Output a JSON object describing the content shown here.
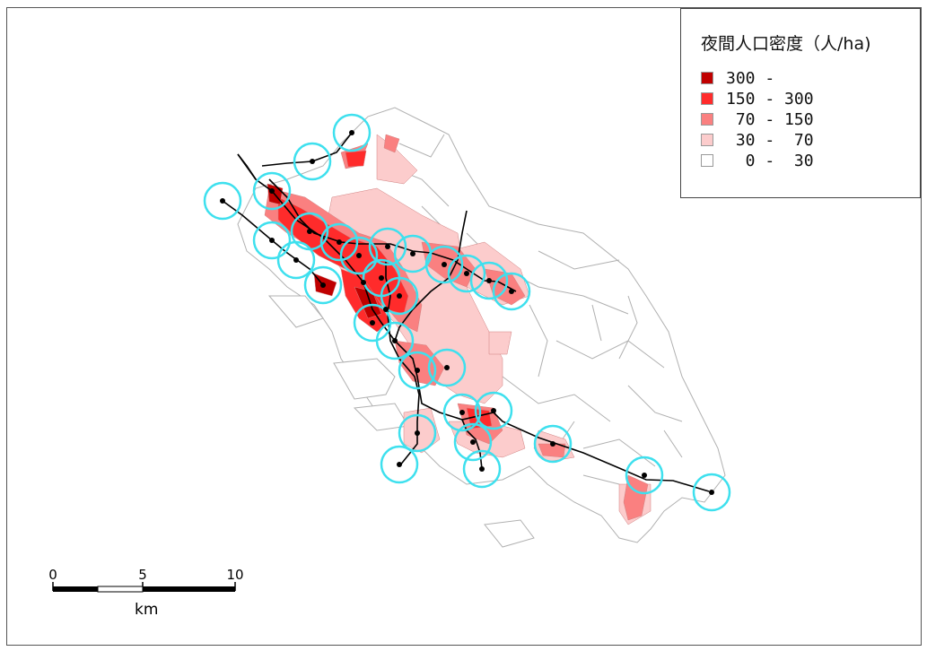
{
  "legend": {
    "title": "夜間人口密度（人/ha)",
    "classes": [
      {
        "label": "300 -",
        "color": "#c00000"
      },
      {
        "label": "150 - 300",
        "color": "#ff2b2b"
      },
      {
        "label": " 70 - 150",
        "color": "#fa8080"
      },
      {
        "label": " 30 -  70",
        "color": "#fccccc"
      },
      {
        "label": "  0 -  30",
        "color": "#ffffff"
      }
    ]
  },
  "scale_bar": {
    "ticks": [
      "0",
      "5",
      "10"
    ],
    "unit": "km"
  },
  "colors": {
    "station_buffer": "#3ee0ee",
    "rail_line": "#000000",
    "boundary": "#b0b0b0"
  },
  "layers": [
    "district-polygons",
    "station-buffers",
    "rail-lines",
    "stations"
  ]
}
